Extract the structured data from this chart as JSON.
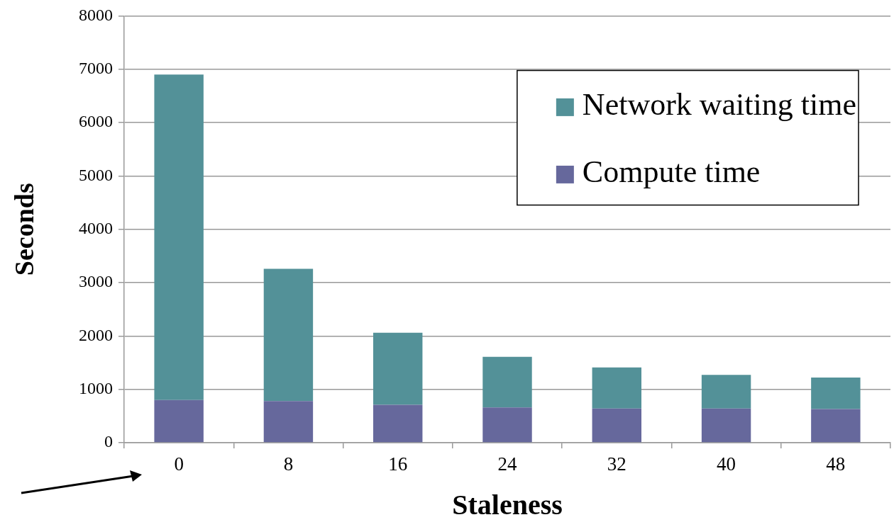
{
  "chart_data": {
    "type": "bar",
    "stacked": true,
    "xlabel": "Staleness",
    "ylabel": "Seconds",
    "categories": [
      "0",
      "8",
      "16",
      "24",
      "32",
      "40",
      "48"
    ],
    "series": [
      {
        "name": "Compute time",
        "color": "#66689c",
        "values": [
          800,
          780,
          710,
          660,
          640,
          640,
          630
        ]
      },
      {
        "name": "Network waiting time",
        "color": "#539198",
        "values": [
          6100,
          2480,
          1350,
          950,
          770,
          630,
          590
        ]
      }
    ],
    "ylim": [
      0,
      8000
    ],
    "yticks": [
      0,
      1000,
      2000,
      3000,
      4000,
      5000,
      6000,
      7000,
      8000
    ],
    "grid": "y",
    "legend": "top right"
  }
}
